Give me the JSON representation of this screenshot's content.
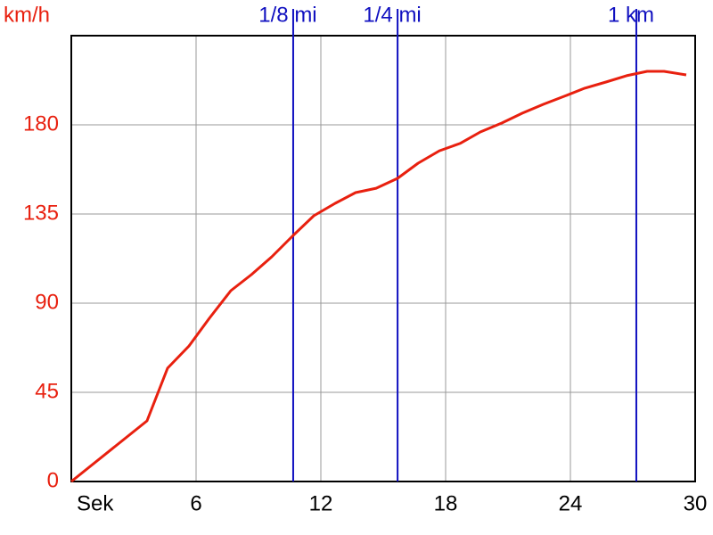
{
  "chart_data": {
    "type": "line",
    "y_label": "km/h",
    "x": [
      0,
      3.64,
      4.63,
      5.66,
      6.64,
      7.67,
      8.66,
      9.64,
      10.67,
      11.66,
      12.69,
      13.67,
      14.66,
      15.69,
      16.67,
      17.7,
      18.69,
      19.67,
      20.7,
      21.69,
      22.71,
      23.7,
      24.69,
      25.71,
      26.7,
      27.69,
      28.5,
      29.57
    ],
    "series": [
      {
        "color": "#e8200f",
        "values": [
          0,
          30.6,
          57.2,
          68.4,
          82.4,
          96.3,
          104.4,
          113.4,
          124.2,
          134.1,
          140.4,
          145.8,
          148,
          153,
          160.6,
          166.9,
          170.6,
          176.4,
          180.9,
          185.9,
          190.4,
          194.4,
          198.5,
          201.6,
          204.8,
          207,
          207,
          205.2
        ]
      }
    ],
    "xlim": [
      0,
      30
    ],
    "xticks": [
      {
        "value": 0,
        "label": "Sek"
      },
      6,
      12,
      18,
      24,
      30
    ],
    "ylim": [
      0,
      225
    ],
    "yticks": [
      0,
      45,
      90,
      135,
      180
    ],
    "grid": true,
    "markers": [
      {
        "label": "1/8 mi",
        "x": 10.67
      },
      {
        "label": "1/4 mi",
        "x": 15.69
      },
      {
        "label": "1 km",
        "x": 27.17
      }
    ],
    "marker_color": "#1010c0"
  }
}
